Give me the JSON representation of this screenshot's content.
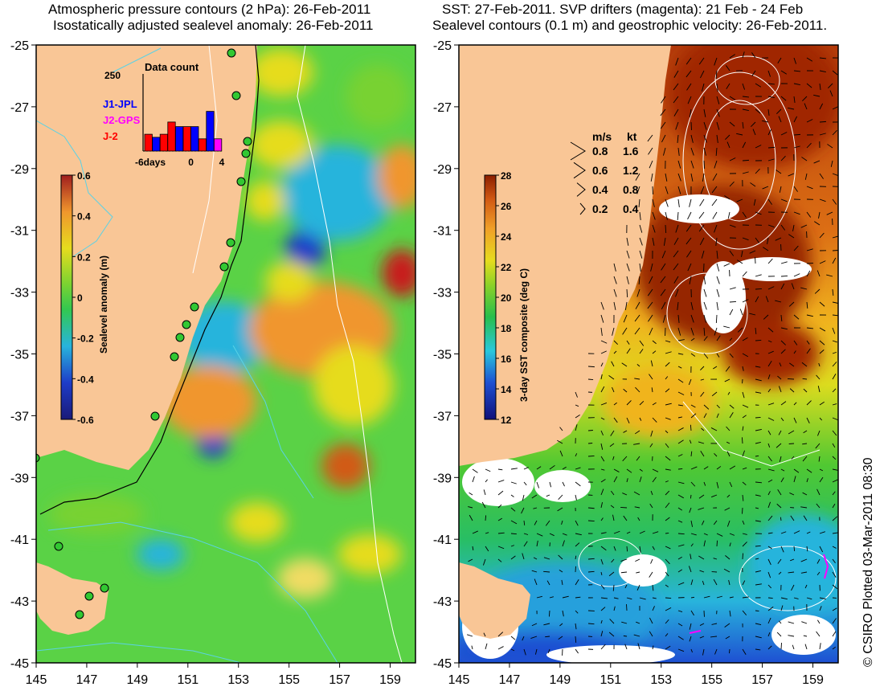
{
  "titles": {
    "left_line1": "Atmospheric pressure contours (2 hPa): 26-Feb-2011",
    "left_line2": "Isostatically adjusted sealevel anomaly: 26-Feb-2011",
    "right_line1": "SST: 27-Feb-2011. SVP drifters (magenta): 21 Feb - 24 Feb",
    "right_line2": "Sealevel contours (0.1 m) and geostrophic velocity: 26-Feb-2011."
  },
  "axes": {
    "lon_ticks": [
      "145",
      "147",
      "149",
      "151",
      "153",
      "155",
      "157",
      "159"
    ],
    "lat_ticks": [
      "-25",
      "-27",
      "-29",
      "-31",
      "-33",
      "-35",
      "-37",
      "-39",
      "-41",
      "-43",
      "-45"
    ],
    "lon_range": [
      145,
      160
    ],
    "lat_range": [
      -45,
      -25
    ]
  },
  "left_colorbar": {
    "label": "Sealevel anomaly (m)",
    "ticks": [
      "0.6",
      "0.4",
      "0.2",
      "0",
      "-0.2",
      "-0.4",
      "-0.6"
    ],
    "range": [
      -0.6,
      0.6
    ]
  },
  "right_colorbar": {
    "label": "3-day SST composite (deg C)",
    "ticks": [
      "28",
      "26",
      "24",
      "22",
      "20",
      "18",
      "16",
      "14",
      "12"
    ],
    "range": [
      12,
      28
    ]
  },
  "data_count": {
    "title": "Data count",
    "ymax_label": "250",
    "ymax": 250,
    "x_ticks": [
      "-6days",
      "0",
      "4"
    ],
    "legend": [
      {
        "name": "J1-JPL",
        "color": "#0000ff"
      },
      {
        "name": "J2-GPS",
        "color": "#ff00ff"
      },
      {
        "name": "J-2",
        "color": "#ff0000"
      }
    ],
    "bars": [
      {
        "day": -6,
        "value": 55,
        "color": "#ff0000"
      },
      {
        "day": -5,
        "value": 45,
        "color": "#0000ff"
      },
      {
        "day": -4,
        "value": 55,
        "color": "#ff0000"
      },
      {
        "day": -3,
        "value": 95,
        "color": "#ff0000"
      },
      {
        "day": -2,
        "value": 80,
        "color": "#0000ff"
      },
      {
        "day": -1,
        "value": 80,
        "color": "#ff0000"
      },
      {
        "day": 0,
        "value": 80,
        "color": "#0000ff"
      },
      {
        "day": 1,
        "value": 40,
        "color": "#ff0000"
      },
      {
        "day": 2,
        "value": 130,
        "color": "#0000ff"
      },
      {
        "day": 3,
        "value": 40,
        "color": "#ff00ff"
      }
    ]
  },
  "velocity_key": {
    "header_ms": "m/s",
    "header_kt": "kt",
    "rows": [
      {
        "ms": "0.8",
        "kt": "1.6"
      },
      {
        "ms": "0.6",
        "kt": "1.2"
      },
      {
        "ms": "0.4",
        "kt": "0.8"
      },
      {
        "ms": "0.2",
        "kt": "0.4"
      }
    ]
  },
  "credit": "© CSIRO Plotted 03-Mar-2011 08:30",
  "colors": {
    "land": "#f9c696",
    "sla_positive": "#c81e1e",
    "sla_zero": "#32c832",
    "sla_negative": "#1e3cc8",
    "sst_warm": "#a02800",
    "sst_cold": "#1e50d2",
    "drifter": "#ff00ff"
  }
}
